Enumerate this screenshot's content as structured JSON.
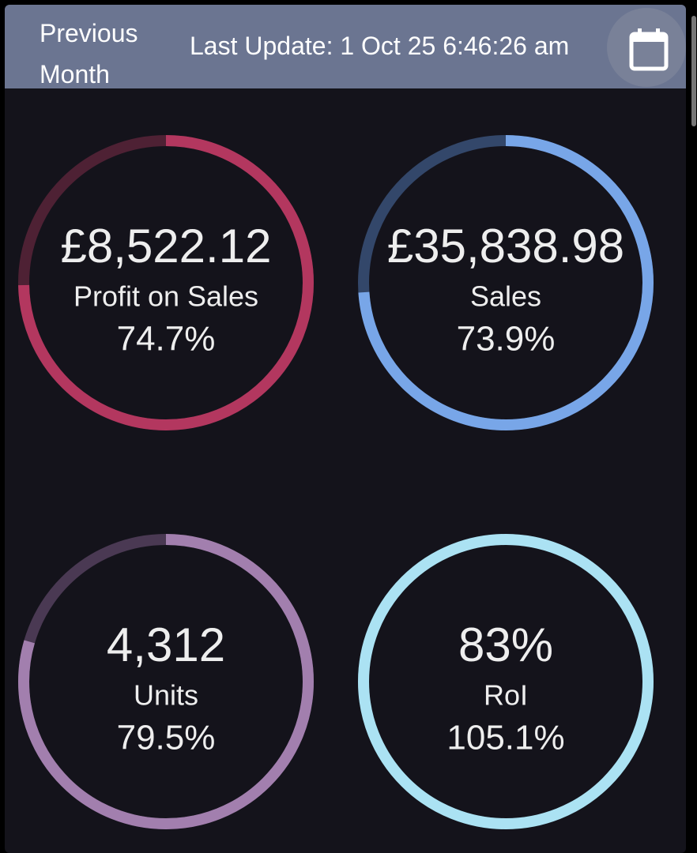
{
  "header": {
    "title": "Previous Month",
    "last_update": "Last Update: 1 Oct 25 6:46:26 am"
  },
  "gauges": [
    {
      "value_label": "£8,522.12",
      "name": "Profit on Sales",
      "percent": 74.7,
      "percent_label": "74.7%",
      "color": "#b3375f",
      "track": "#4e2134"
    },
    {
      "value_label": "£35,838.98",
      "name": "Sales",
      "percent": 73.9,
      "percent_label": "73.9%",
      "color": "#78a6e8",
      "track": "#33476a"
    },
    {
      "value_label": "4,312",
      "name": "Units",
      "percent": 79.5,
      "percent_label": "79.5%",
      "color": "#a27fae",
      "track": "#4a3953"
    },
    {
      "value_label": "83%",
      "name": "RoI",
      "percent": 105.1,
      "percent_label": "105.1%",
      "color": "#abe2f3",
      "track": "#2c4a55"
    }
  ]
}
